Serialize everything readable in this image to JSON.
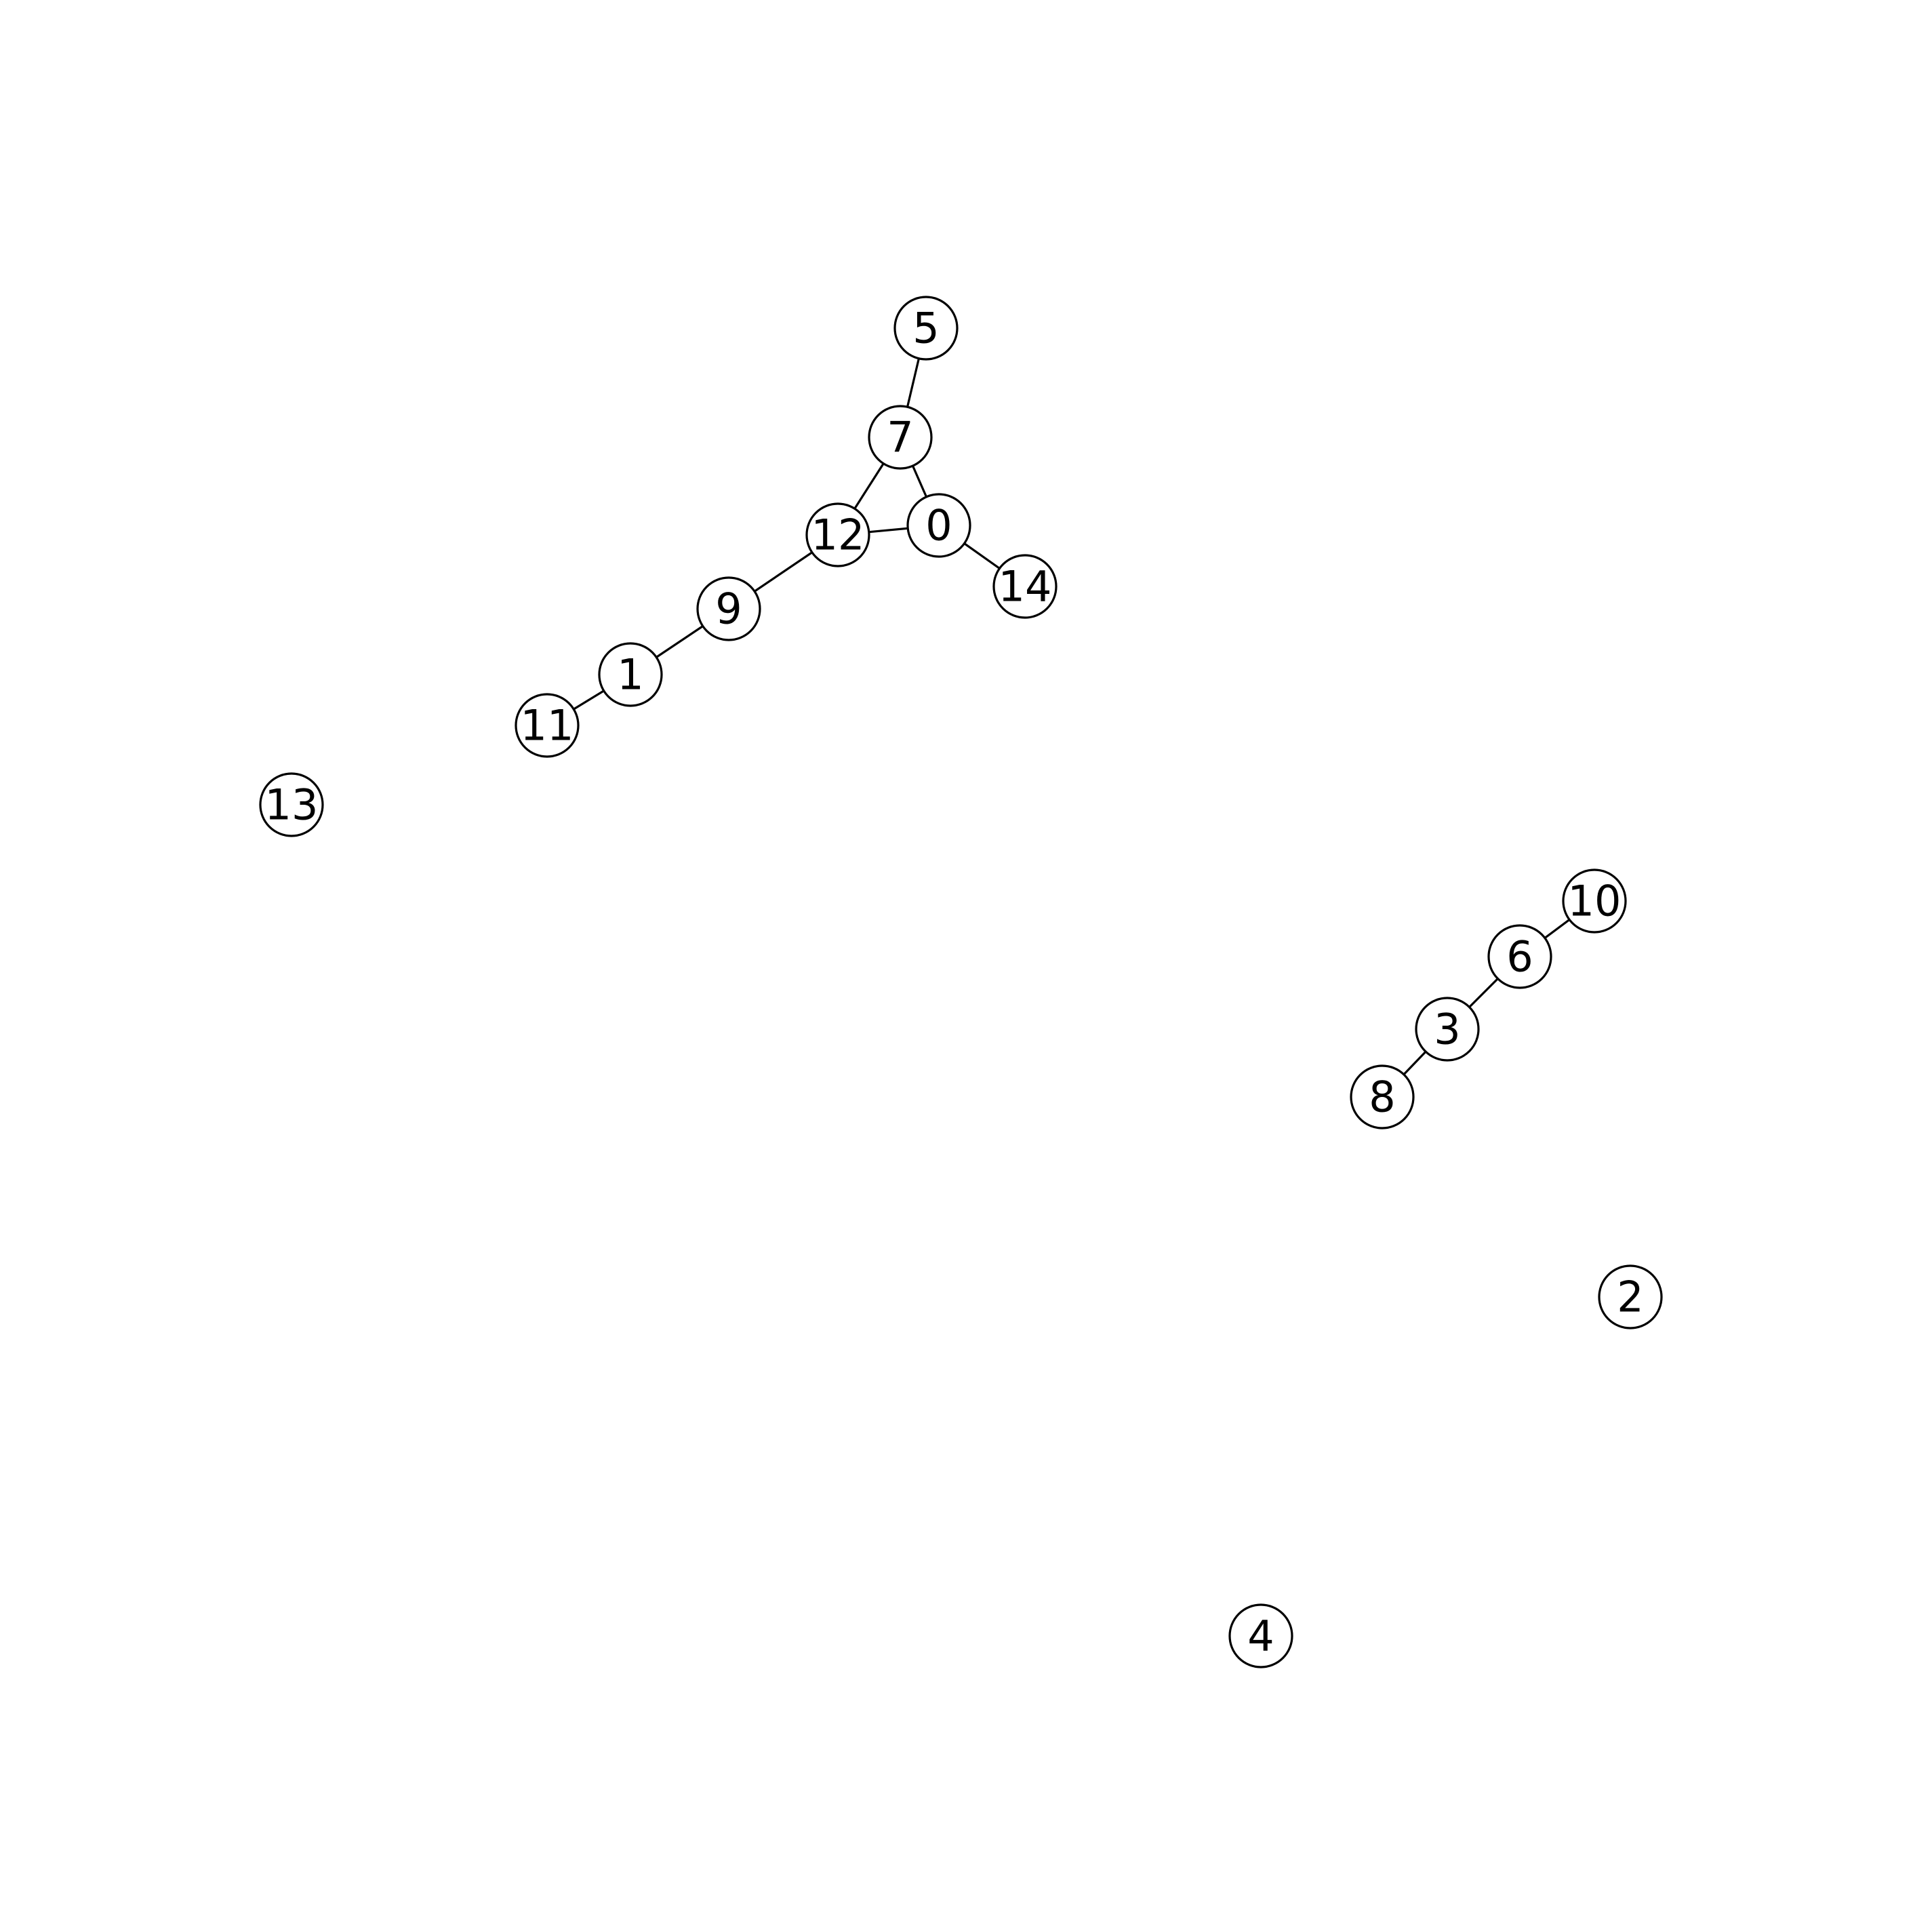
{
  "graph": {
    "nodes": [
      {
        "id": "0",
        "label": "0"
      },
      {
        "id": "1",
        "label": "1"
      },
      {
        "id": "2",
        "label": "2"
      },
      {
        "id": "3",
        "label": "3"
      },
      {
        "id": "4",
        "label": "4"
      },
      {
        "id": "5",
        "label": "5"
      },
      {
        "id": "6",
        "label": "6"
      },
      {
        "id": "7",
        "label": "7"
      },
      {
        "id": "8",
        "label": "8"
      },
      {
        "id": "9",
        "label": "9"
      },
      {
        "id": "10",
        "label": "10"
      },
      {
        "id": "11",
        "label": "11"
      },
      {
        "id": "12",
        "label": "12"
      },
      {
        "id": "13",
        "label": "13"
      },
      {
        "id": "14",
        "label": "14"
      }
    ],
    "edges": [
      {
        "source": "5",
        "target": "7"
      },
      {
        "source": "7",
        "target": "12"
      },
      {
        "source": "7",
        "target": "0"
      },
      {
        "source": "12",
        "target": "0"
      },
      {
        "source": "0",
        "target": "14"
      },
      {
        "source": "12",
        "target": "9"
      },
      {
        "source": "9",
        "target": "1"
      },
      {
        "source": "1",
        "target": "11"
      },
      {
        "source": "10",
        "target": "6"
      },
      {
        "source": "6",
        "target": "3"
      },
      {
        "source": "3",
        "target": "8"
      }
    ],
    "node_fill": "#ffffff",
    "stroke_color": "#000000"
  }
}
